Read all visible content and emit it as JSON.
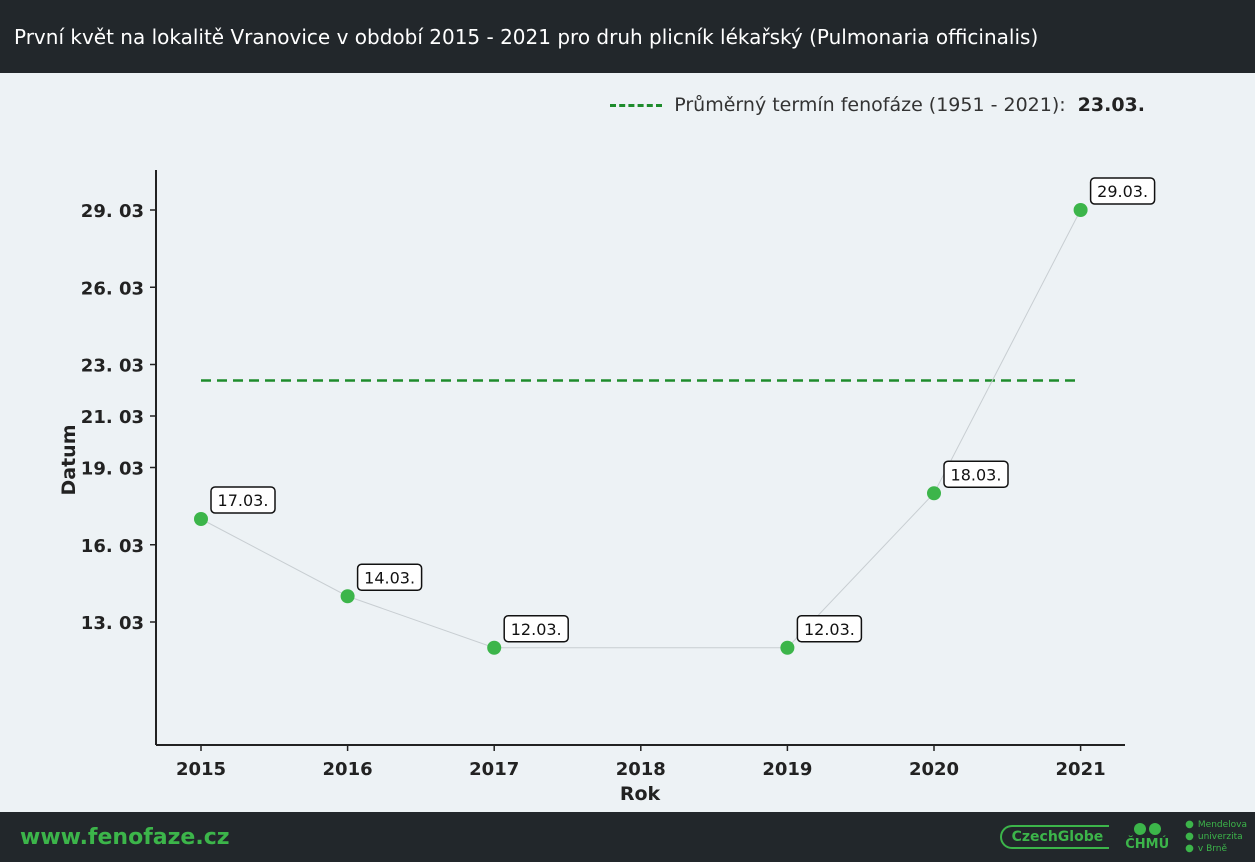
{
  "header": {
    "title": "První květ na lokalitě Vranovice v období 2015 - 2021 pro druh plicník lékařský (Pulmonaria officinalis)"
  },
  "legend": {
    "label": "Průměrný termín fenofáze (1951 - 2021):",
    "value": "23.03."
  },
  "footer": {
    "site": "www.fenofaze.cz",
    "logo_czechglobe": "CzechGlobe",
    "logo_chmu": "ČHMÚ",
    "logo_mendel": [
      "Mendelova",
      "univerzita",
      "v Brně"
    ]
  },
  "chart_data": {
    "type": "line",
    "title": "První květ na lokalitě Vranovice v období 2015 - 2021 pro druh plicník lékařský (Pulmonaria officinalis)",
    "xlabel": "Rok",
    "ylabel": "Datum",
    "x_ticks": [
      "2015",
      "2016",
      "2017",
      "2018",
      "2019",
      "2020",
      "2021"
    ],
    "y_ticks": [
      "13. 03",
      "16. 03",
      "19. 03",
      "21. 03",
      "23. 03",
      "26. 03",
      "29. 03"
    ],
    "y_tick_days": [
      72,
      75,
      78,
      80,
      82,
      85,
      88
    ],
    "series": [
      {
        "x": [
          "2015",
          "2016",
          "2017",
          "2019",
          "2020",
          "2021"
        ],
        "y": [
          "17.03.",
          "14.03.",
          "12.03.",
          "12.03.",
          "18.03.",
          "29.03."
        ],
        "y_days": [
          76,
          73,
          71,
          71,
          77,
          88
        ],
        "labels": [
          "17.03.",
          "14.03.",
          "12.03.",
          "12.03.",
          "18.03.",
          "29.03."
        ],
        "color": "#3cb54a"
      }
    ],
    "reference_line": {
      "value": "23.03.",
      "value_day": 82,
      "color": "#1e8c2c",
      "style": "dashed"
    },
    "grid": false
  }
}
